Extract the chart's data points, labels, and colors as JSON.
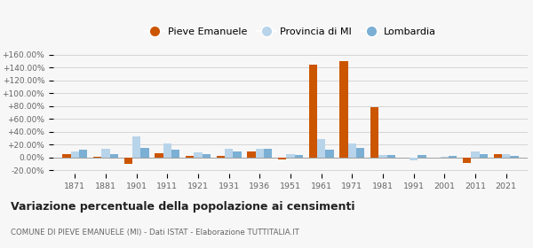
{
  "years": [
    1871,
    1881,
    1901,
    1911,
    1921,
    1931,
    1936,
    1951,
    1961,
    1971,
    1981,
    1991,
    2001,
    2011,
    2021
  ],
  "pieve": [
    5.0,
    1.0,
    -10.0,
    7.0,
    3.0,
    2.5,
    10.0,
    -3.0,
    145.0,
    150.0,
    78.0,
    null,
    0.5,
    -8.0,
    6.0
  ],
  "provincia": [
    10.0,
    13.0,
    33.0,
    22.0,
    8.0,
    14.0,
    13.0,
    5.0,
    29.0,
    22.0,
    3.5,
    -5.0,
    1.0,
    9.0,
    5.0
  ],
  "lombardia": [
    12.0,
    5.0,
    15.0,
    12.0,
    6.0,
    9.0,
    13.0,
    4.0,
    12.0,
    15.0,
    3.5,
    4.5,
    2.0,
    5.0,
    3.0
  ],
  "pieve_color": "#cc5500",
  "provincia_color": "#b8d4ea",
  "lombardia_color": "#7bafd4",
  "bg_color": "#f7f7f7",
  "title": "Variazione percentuale della popolazione ai censimenti",
  "subtitle": "COMUNE DI PIEVE EMANUELE (MI) - Dati ISTAT - Elaborazione TUTTITALIA.IT",
  "legend_labels": [
    "Pieve Emanuele",
    "Provincia di MI",
    "Lombardia"
  ],
  "ylim": [
    -25,
    168
  ],
  "yticks": [
    -20,
    0,
    20,
    40,
    60,
    80,
    100,
    120,
    140,
    160
  ],
  "bar_width": 0.27
}
